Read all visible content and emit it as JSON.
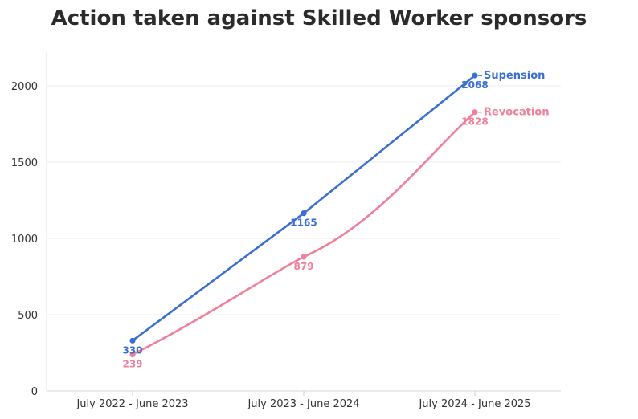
{
  "title": "Action taken against Skilled Worker sponsors",
  "chart_data": {
    "type": "line",
    "title": "Action taken against Skilled Worker sponsors",
    "categories": [
      "July 2022 - June 2023",
      "July 2023 - June 2024",
      "July 2024 - June 2025"
    ],
    "series": [
      {
        "name": "Supension",
        "values": [
          330,
          1165,
          2068
        ],
        "color": "#3a6fd1"
      },
      {
        "name": "Revocation",
        "values": [
          239,
          879,
          1828
        ],
        "color": "#ef7f9b"
      }
    ],
    "ylim": [
      0,
      2000
    ],
    "yticks": [
      "0",
      "500",
      "1000",
      "1500",
      "2000"
    ],
    "grid": true,
    "legend": "direct labels at line ends"
  }
}
